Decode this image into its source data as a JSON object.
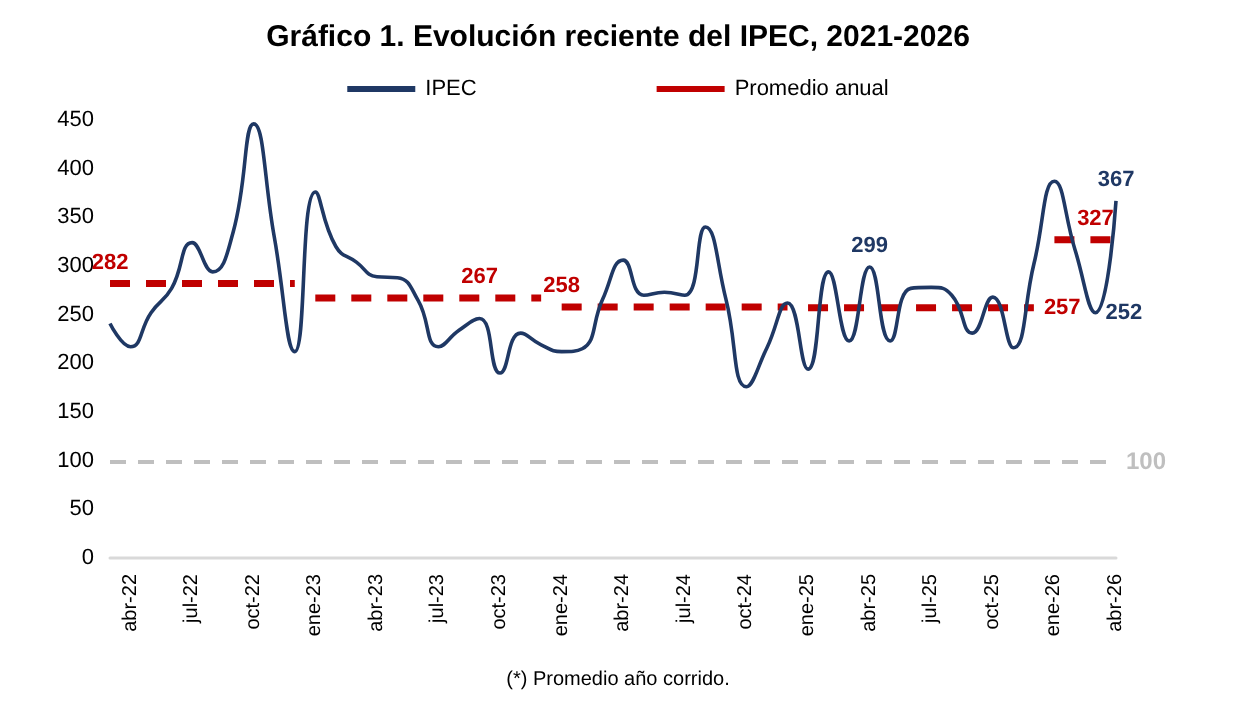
{
  "chart_data": {
    "type": "line",
    "title": "Gráfico 1. Evolución reciente del IPEC, 2021-2026",
    "categories": [
      null,
      "abr-22",
      null,
      null,
      "jul-22",
      null,
      null,
      "oct-22",
      null,
      null,
      "ene-23",
      null,
      null,
      "abr-23",
      null,
      null,
      "jul-23",
      null,
      null,
      "oct-23",
      null,
      null,
      "ene-24",
      null,
      null,
      "abr-24",
      null,
      null,
      "jul-24",
      null,
      null,
      "oct-24",
      null,
      null,
      "ene-25",
      null,
      null,
      "abr-25",
      null,
      null,
      "jul-25",
      null,
      null,
      "oct-25",
      null,
      null,
      "ene-26",
      null,
      null,
      "abr-26"
    ],
    "series": [
      {
        "name": "IPEC",
        "color": "#1f3864",
        "line_style": "solid",
        "values": [
          241,
          217,
          252,
          277,
          324,
          294,
          335,
          446,
          330,
          212,
          376,
          320,
          304,
          289,
          288,
          265,
          217,
          234,
          246,
          190,
          231,
          219,
          212,
          215,
          266,
          306,
          270,
          273,
          270,
          340,
          266,
          176,
          216,
          262,
          194,
          294,
          223,
          299,
          223,
          277,
          278,
          270,
          231,
          268,
          216,
          302,
          387,
          317,
          252,
          367
        ],
        "value_labels": [
          null,
          null,
          null,
          null,
          null,
          null,
          null,
          null,
          null,
          null,
          null,
          null,
          null,
          null,
          null,
          null,
          null,
          null,
          null,
          null,
          null,
          null,
          null,
          null,
          null,
          null,
          null,
          null,
          null,
          null,
          null,
          null,
          null,
          null,
          null,
          null,
          null,
          "299",
          null,
          null,
          null,
          null,
          null,
          null,
          null,
          null,
          null,
          null,
          "252",
          "367"
        ]
      },
      {
        "name": "Promedio anual",
        "color": "#c00000",
        "line_style": "dashed",
        "values": [
          282,
          282,
          282,
          282,
          282,
          282,
          282,
          282,
          282,
          282,
          267,
          267,
          267,
          267,
          267,
          267,
          267,
          267,
          267,
          267,
          267,
          267,
          258,
          258,
          258,
          258,
          258,
          258,
          258,
          258,
          258,
          258,
          258,
          258,
          257,
          257,
          257,
          257,
          257,
          257,
          257,
          257,
          257,
          257,
          257,
          257,
          327,
          327,
          327,
          327
        ],
        "value_labels": [
          "282",
          null,
          null,
          null,
          null,
          null,
          null,
          null,
          null,
          null,
          null,
          null,
          null,
          null,
          null,
          null,
          null,
          null,
          "267",
          null,
          null,
          null,
          "258",
          null,
          null,
          null,
          null,
          null,
          null,
          null,
          null,
          null,
          null,
          null,
          null,
          null,
          null,
          null,
          null,
          null,
          null,
          null,
          null,
          null,
          null,
          "257",
          null,
          null,
          "327",
          null
        ]
      }
    ],
    "ylim": [
      0,
      450
    ],
    "yticks": [
      0,
      50,
      100,
      150,
      200,
      250,
      300,
      350,
      400,
      450
    ],
    "ref_lines": [
      {
        "axis": "y",
        "value": 100,
        "label": "100",
        "color": "#bfbfbf",
        "line_style": "dashed"
      }
    ],
    "grid": false,
    "legend": "top",
    "marker": "none",
    "annotations": [
      "(*) Promedio año corrido."
    ]
  }
}
